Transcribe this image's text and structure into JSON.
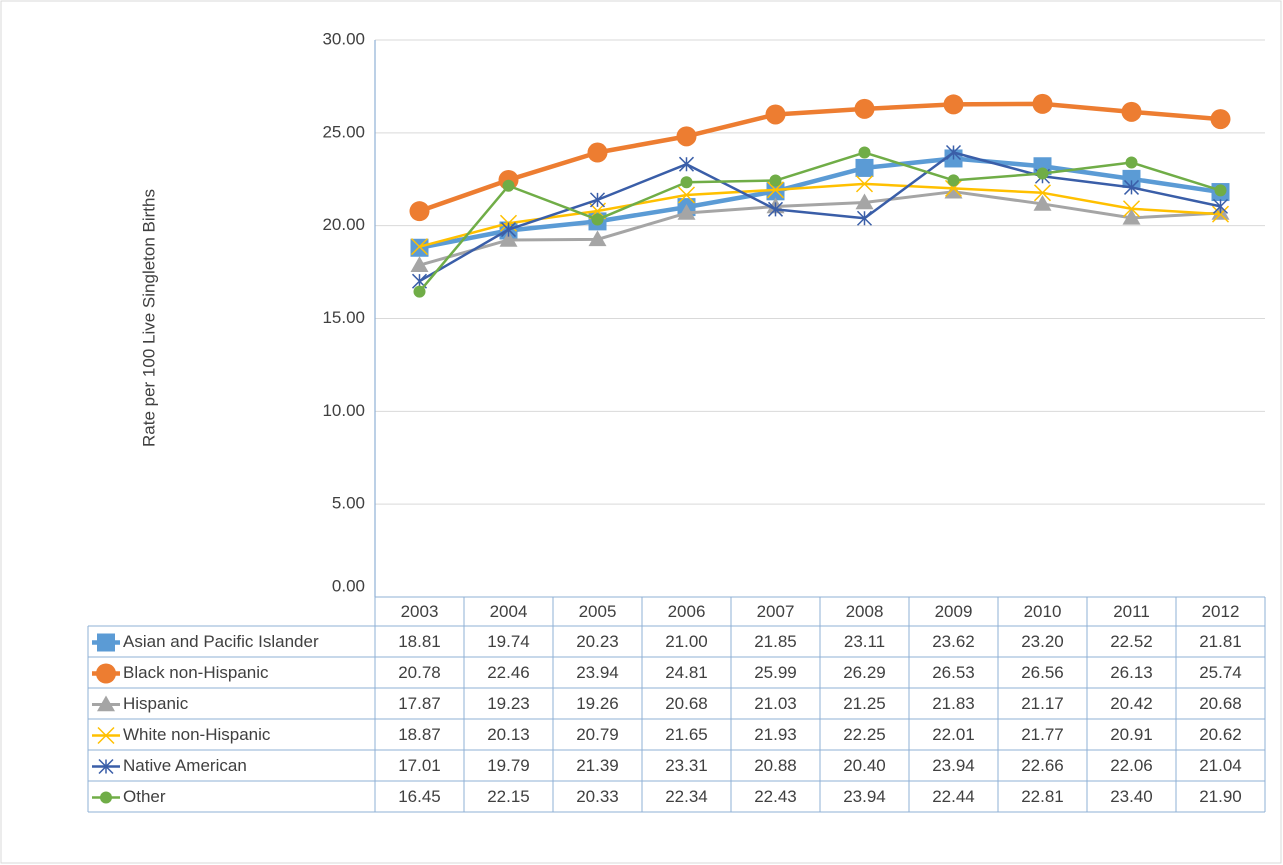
{
  "chart_data": {
    "type": "line",
    "y_label": "Rate per 100 Live Singleton Births",
    "categories": [
      "2003",
      "2004",
      "2005",
      "2006",
      "2007",
      "2008",
      "2009",
      "2010",
      "2011",
      "2012"
    ],
    "ylim": [
      0,
      30
    ],
    "yticks": [
      {
        "value": 0,
        "label": "0.00"
      },
      {
        "value": 5,
        "label": "5.00"
      },
      {
        "value": 10,
        "label": "10.00"
      },
      {
        "value": 15,
        "label": "15.00"
      },
      {
        "value": 20,
        "label": "20.00"
      },
      {
        "value": 25,
        "label": "25.00"
      },
      {
        "value": 30,
        "label": "30.00"
      }
    ],
    "grid": true,
    "data_table": true,
    "series": [
      {
        "name": "Asian and Pacific Islander",
        "color": "#5b9bd5",
        "marker": "square",
        "values": [
          18.81,
          19.74,
          20.23,
          21.0,
          21.85,
          23.11,
          23.62,
          23.2,
          22.52,
          21.81
        ],
        "value_labels": [
          "18.81",
          "19.74",
          "20.23",
          "21.00",
          "21.85",
          "23.11",
          "23.62",
          "23.20",
          "22.52",
          "21.81"
        ]
      },
      {
        "name": "Black non-Hispanic",
        "color": "#ed7d31",
        "marker": "circle",
        "values": [
          20.78,
          22.46,
          23.94,
          24.81,
          25.99,
          26.29,
          26.53,
          26.56,
          26.13,
          25.74
        ],
        "value_labels": [
          "20.78",
          "22.46",
          "23.94",
          "24.81",
          "25.99",
          "26.29",
          "26.53",
          "26.56",
          "26.13",
          "25.74"
        ]
      },
      {
        "name": "Hispanic",
        "color": "#a5a5a5",
        "marker": "triangle",
        "values": [
          17.87,
          19.23,
          19.26,
          20.68,
          21.03,
          21.25,
          21.83,
          21.17,
          20.42,
          20.68
        ],
        "value_labels": [
          "17.87",
          "19.23",
          "19.26",
          "20.68",
          "21.03",
          "21.25",
          "21.83",
          "21.17",
          "20.42",
          "20.68"
        ]
      },
      {
        "name": "White non-Hispanic",
        "color": "#ffc000",
        "marker": "x",
        "values": [
          18.87,
          20.13,
          20.79,
          21.65,
          21.93,
          22.25,
          22.01,
          21.77,
          20.91,
          20.62
        ],
        "value_labels": [
          "18.87",
          "20.13",
          "20.79",
          "21.65",
          "21.93",
          "22.25",
          "22.01",
          "21.77",
          "20.91",
          "20.62"
        ]
      },
      {
        "name": "Native American",
        "color": "#3a5ea8",
        "marker": "asterisk",
        "values": [
          17.01,
          19.79,
          21.39,
          23.31,
          20.88,
          20.4,
          23.94,
          22.66,
          22.06,
          21.04
        ],
        "value_labels": [
          "17.01",
          "19.79",
          "21.39",
          "23.31",
          "20.88",
          "20.40",
          "23.94",
          "22.66",
          "22.06",
          "21.04"
        ]
      },
      {
        "name": "Other",
        "color": "#70ad47",
        "marker": "dot",
        "values": [
          16.45,
          22.15,
          20.33,
          22.34,
          22.43,
          23.94,
          22.44,
          22.81,
          23.4,
          21.9
        ],
        "value_labels": [
          "16.45",
          "22.15",
          "20.33",
          "22.34",
          "22.43",
          "23.94",
          "22.44",
          "22.81",
          "23.40",
          "21.90"
        ]
      }
    ]
  }
}
